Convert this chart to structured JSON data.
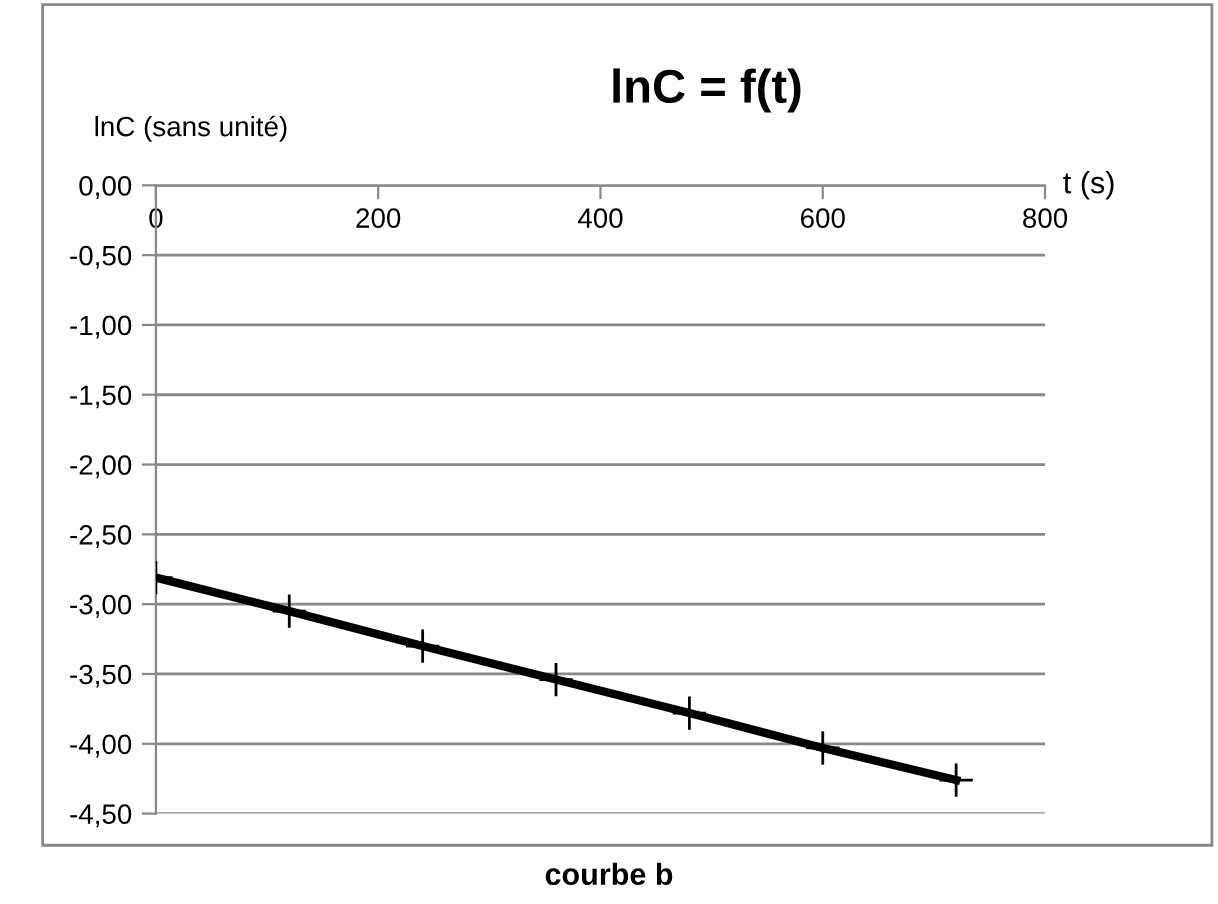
{
  "chart_data": {
    "type": "line",
    "title": "lnC = f(t)",
    "xlabel": "t (s)",
    "ylabel": "lnC (sans unité)",
    "annotations": [
      "courbe b"
    ],
    "x": [
      0,
      120,
      240,
      360,
      480,
      600,
      720
    ],
    "series": [
      {
        "color": "#000000",
        "values": [
          -2.81,
          -3.05,
          -3.3,
          -3.54,
          -3.78,
          -4.03,
          -4.26
        ]
      }
    ],
    "marker": "cross",
    "line_style": "solid",
    "grid": "y",
    "legend": false,
    "xlim": [
      0,
      800
    ],
    "xticks": [
      0,
      200,
      400,
      600,
      800
    ],
    "ylim": [
      -4.5,
      0
    ],
    "yticks": [
      {
        "value": 0,
        "label": "0,00"
      },
      {
        "value": -0.5,
        "label": "-0,50"
      },
      {
        "value": -1,
        "label": "-1,00"
      },
      {
        "value": -1.5,
        "label": "-1,50"
      },
      {
        "value": -2,
        "label": "-2,00"
      },
      {
        "value": -2.5,
        "label": "-2,50"
      },
      {
        "value": -3,
        "label": "-3,00"
      },
      {
        "value": -3.5,
        "label": "-3,50"
      },
      {
        "value": -4,
        "label": "-4,00"
      },
      {
        "value": -4.5,
        "label": "-4,50"
      }
    ]
  }
}
